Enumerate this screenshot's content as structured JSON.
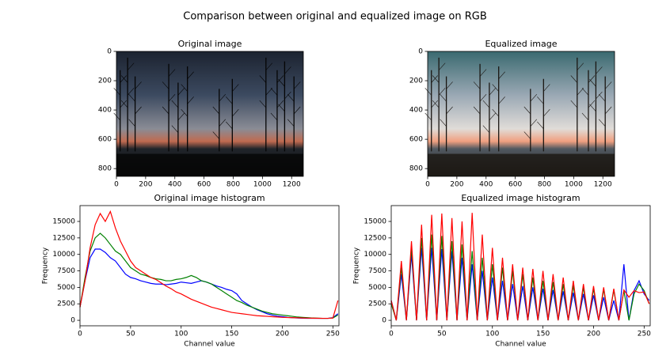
{
  "title": "Comparison between original and equalized image on RGB",
  "chart_data": [
    {
      "type": "image",
      "title": "Original image",
      "xlim": [
        0,
        1280
      ],
      "ylim": [
        853,
        0
      ],
      "xticks": [
        0,
        200,
        400,
        600,
        800,
        1000,
        1200
      ],
      "yticks": [
        0,
        200,
        400,
        600,
        800
      ],
      "equalized": false
    },
    {
      "type": "image",
      "title": "Equalized image",
      "xlim": [
        0,
        1280
      ],
      "ylim": [
        853,
        0
      ],
      "xticks": [
        0,
        200,
        400,
        600,
        800,
        1000,
        1200
      ],
      "yticks": [
        0,
        200,
        400,
        600,
        800
      ],
      "equalized": true
    },
    {
      "type": "line",
      "title": "Original image histogram",
      "x_label": "Channel value",
      "y_label": "Frequency",
      "xlim": [
        0,
        256
      ],
      "ylim": [
        -830,
        17400
      ],
      "xticks": [
        0,
        50,
        100,
        150,
        200,
        250
      ],
      "yticks": [
        0,
        2500,
        5000,
        7500,
        10000,
        12500,
        15000
      ],
      "x": [
        0,
        5,
        10,
        15,
        20,
        25,
        30,
        35,
        40,
        45,
        50,
        55,
        60,
        65,
        70,
        75,
        80,
        85,
        90,
        95,
        100,
        105,
        110,
        115,
        120,
        125,
        130,
        135,
        140,
        145,
        150,
        155,
        160,
        165,
        170,
        175,
        180,
        185,
        190,
        195,
        200,
        205,
        210,
        215,
        220,
        225,
        230,
        235,
        240,
        245,
        250,
        255
      ],
      "series": [
        {
          "color": "#0000ff",
          "values": [
            2000,
            6000,
            9500,
            10800,
            10800,
            10300,
            9500,
            9000,
            8000,
            7000,
            6500,
            6300,
            6000,
            5800,
            5600,
            5500,
            5500,
            5400,
            5500,
            5600,
            5800,
            5700,
            5600,
            5800,
            6000,
            5800,
            5500,
            5200,
            5000,
            4700,
            4500,
            4000,
            3000,
            2500,
            2000,
            1600,
            1300,
            1000,
            800,
            650,
            550,
            450,
            400,
            350,
            320,
            300,
            300,
            300,
            300,
            300,
            400,
            1000
          ]
        },
        {
          "color": "#008000",
          "values": [
            2000,
            6500,
            10500,
            12500,
            13200,
            12500,
            11500,
            10500,
            10000,
            9000,
            8000,
            7500,
            7000,
            6800,
            6500,
            6300,
            6200,
            6000,
            6000,
            6200,
            6300,
            6500,
            6800,
            6500,
            6000,
            5800,
            5500,
            5000,
            4500,
            4000,
            3500,
            3000,
            2700,
            2300,
            2000,
            1700,
            1400,
            1200,
            1000,
            900,
            800,
            700,
            600,
            500,
            450,
            400,
            350,
            320,
            300,
            300,
            350,
            800
          ]
        },
        {
          "color": "#ff0000",
          "values": [
            2000,
            6000,
            11000,
            14500,
            16200,
            15000,
            16500,
            14000,
            12000,
            10500,
            9000,
            8000,
            7500,
            7000,
            6500,
            6200,
            5700,
            5200,
            4800,
            4300,
            4000,
            3600,
            3200,
            2900,
            2600,
            2300,
            2000,
            1800,
            1600,
            1400,
            1200,
            1100,
            1000,
            900,
            800,
            700,
            650,
            600,
            550,
            500,
            450,
            420,
            400,
            380,
            350,
            330,
            320,
            310,
            300,
            300,
            350,
            3000
          ]
        }
      ]
    },
    {
      "type": "line",
      "title": "Equalized image histogram",
      "x_label": "Channel value",
      "y_label": "Frequency",
      "xlim": [
        0,
        256
      ],
      "ylim": [
        -830,
        17400
      ],
      "xticks": [
        0,
        50,
        100,
        150,
        200,
        250
      ],
      "yticks": [
        0,
        2500,
        5000,
        7500,
        10000,
        12500,
        15000
      ],
      "x": [
        0,
        5,
        10,
        15,
        20,
        25,
        30,
        35,
        40,
        45,
        50,
        55,
        60,
        65,
        70,
        75,
        80,
        85,
        90,
        95,
        100,
        105,
        110,
        115,
        120,
        125,
        130,
        135,
        140,
        145,
        150,
        155,
        160,
        165,
        170,
        175,
        180,
        185,
        190,
        195,
        200,
        205,
        210,
        215,
        220,
        225,
        230,
        235,
        240,
        245,
        250,
        255
      ],
      "series": [
        {
          "color": "#0000ff",
          "values": [
            3000,
            0,
            7000,
            0,
            10000,
            0,
            11000,
            0,
            11000,
            0,
            10800,
            0,
            10500,
            0,
            9500,
            0,
            8500,
            0,
            7500,
            0,
            6500,
            0,
            6000,
            0,
            5500,
            0,
            5200,
            0,
            5000,
            0,
            4800,
            0,
            4600,
            0,
            4400,
            0,
            4200,
            0,
            4000,
            0,
            3800,
            0,
            3500,
            0,
            3000,
            0,
            8500,
            0,
            4500,
            6000,
            4000,
            3000
          ]
        },
        {
          "color": "#008000",
          "values": [
            2500,
            0,
            8000,
            0,
            11000,
            0,
            12500,
            0,
            13000,
            0,
            12800,
            0,
            12000,
            0,
            11500,
            0,
            10500,
            0,
            9500,
            0,
            8500,
            0,
            8000,
            0,
            7500,
            0,
            7000,
            0,
            6500,
            0,
            6000,
            0,
            5800,
            0,
            5500,
            0,
            5300,
            0,
            5000,
            0,
            4800,
            0,
            4700,
            0,
            4600,
            0,
            4500,
            0,
            4000,
            5500,
            4500,
            2500
          ]
        },
        {
          "color": "#ff0000",
          "values": [
            3000,
            0,
            9000,
            0,
            12000,
            0,
            14500,
            0,
            16000,
            0,
            16200,
            0,
            15500,
            0,
            15000,
            0,
            16300,
            0,
            13000,
            0,
            11000,
            0,
            9500,
            0,
            8500,
            0,
            8000,
            0,
            7800,
            0,
            7500,
            0,
            7000,
            0,
            6500,
            0,
            6000,
            0,
            5500,
            0,
            5200,
            0,
            5000,
            0,
            4800,
            0,
            4600,
            3500,
            4500,
            4200,
            4300,
            2500
          ]
        }
      ]
    }
  ]
}
